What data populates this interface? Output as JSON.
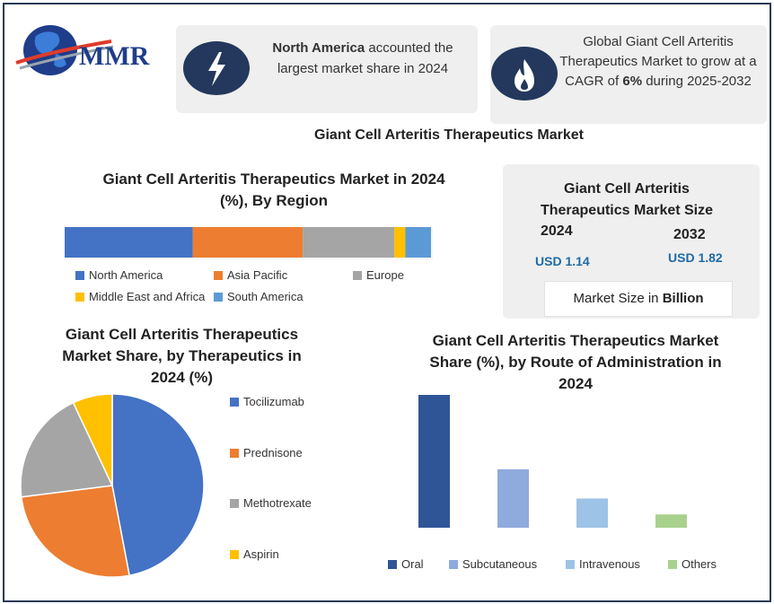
{
  "logo": {
    "text": "MMR"
  },
  "highlights": {
    "region_strong": "North America",
    "region_rest": " accounted the largest market share in 2024",
    "cagr_pre": "Global Giant Cell Arteritis Therapeutics Market to grow at a CAGR of ",
    "cagr_value": "6%",
    "cagr_post": " during 2025-2032"
  },
  "main_title": "Giant Cell Arteritis Therapeutics Market",
  "market_size": {
    "title": "Giant Cell Arteritis Therapeutics Market Size",
    "year1": "2024",
    "year2": "2032",
    "value1": "USD 1.14",
    "value2": "USD 1.82",
    "unit_pre": "Market Size in ",
    "unit_strong": "Billion"
  },
  "colors": {
    "north_america": "#4472c4",
    "asia_pacific": "#ed7d31",
    "europe": "#a5a5a5",
    "mea": "#ffc000",
    "south_america": "#5b9bd5",
    "oral": "#2f5597",
    "subcutaneous": "#8faadc",
    "intravenous": "#9dc3e6",
    "others": "#a9d18e"
  },
  "chart_data": [
    {
      "type": "bar",
      "orientation": "horizontal-stacked",
      "title": "Giant Cell Arteritis Therapeutics Market in 2024 (%), By Region",
      "categories": [
        "North America",
        "Asia Pacific",
        "Europe",
        "Middle East and Africa",
        "South America"
      ],
      "values": [
        35,
        30,
        25,
        3,
        7
      ]
    },
    {
      "type": "pie",
      "title": "Giant Cell Arteritis Therapeutics Market Share, by Therapeutics in 2024 (%)",
      "categories": [
        "Tocilizumab",
        "Prednisone",
        "Methotrexate",
        "Aspirin"
      ],
      "values": [
        47,
        26,
        20,
        7
      ]
    },
    {
      "type": "bar",
      "title": "Giant Cell Arteritis Therapeutics Market Share (%), by Route of Administration in 2024",
      "categories": [
        "Oral",
        "Subcutaneous",
        "Intravenous",
        "Others"
      ],
      "values": [
        50,
        22,
        11,
        5
      ],
      "ylim": [
        0,
        50
      ]
    }
  ]
}
